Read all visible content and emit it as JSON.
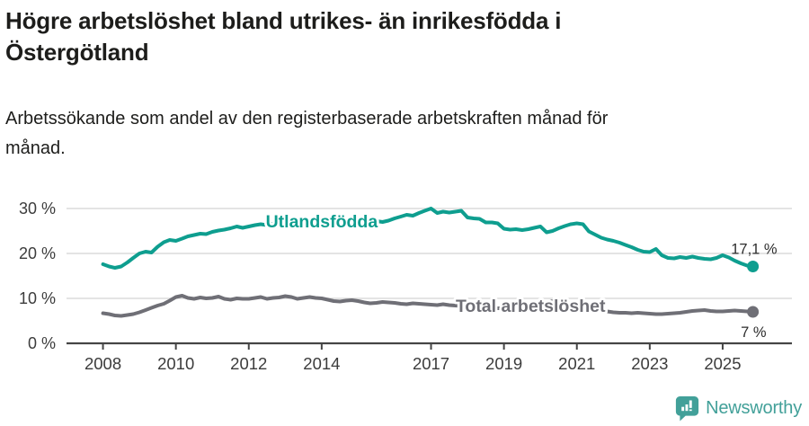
{
  "title_lines": [
    "Högre arbetslöshet bland utrikes- än inrikesfödda i",
    "Östergötland"
  ],
  "subtitle_lines": [
    "Arbetssökande som andel av den registerbaserade arbetskraften månad för",
    "månad."
  ],
  "branding": {
    "name": "Newsworthy",
    "color": "#42a099"
  },
  "chart_data": {
    "type": "line",
    "title": "Högre arbetslöshet bland utrikes- än inrikesfödda i Östergötland",
    "subtitle": "Arbetssökande som andel av den registerbaserade arbetskraften månad för månad.",
    "xlabel": "",
    "ylabel": "",
    "grid": true,
    "legend_position": "inline-labels",
    "x_axis": {
      "min": 2007.0,
      "max": 2026.9,
      "ticks": [
        2008,
        2010,
        2012,
        2014,
        2017,
        2019,
        2021,
        2023,
        2025
      ],
      "tick_labels": [
        "2008",
        "2010",
        "2012",
        "2014",
        "2017",
        "2019",
        "2021",
        "2023",
        "2025"
      ]
    },
    "y_axis": {
      "min": 0,
      "max": 32,
      "ticks": [
        0,
        10,
        20,
        30
      ],
      "tick_labels": [
        "0 %",
        "10 %",
        "20 %",
        "30 %"
      ]
    },
    "colors": {
      "grid": "#dcdcdc",
      "axis": "#454545",
      "axis_text": "#3c3c3c",
      "end_label": "#2d2d2d"
    },
    "series": [
      {
        "id": "utlandsfodda",
        "name": "Utlandsfödda",
        "color": "#0e9e8f",
        "end_label": "17,1 %",
        "end_value": 17.1,
        "end_label_offset": [
          27,
          -14
        ],
        "inline_label": {
          "x": 2014.0,
          "y": 25.8
        },
        "points": [
          [
            2008.0,
            17.6
          ],
          [
            2008.17,
            17.1
          ],
          [
            2008.33,
            16.8
          ],
          [
            2008.5,
            17.1
          ],
          [
            2008.67,
            18.0
          ],
          [
            2008.83,
            19.0
          ],
          [
            2009.0,
            20.0
          ],
          [
            2009.17,
            20.4
          ],
          [
            2009.33,
            20.2
          ],
          [
            2009.5,
            21.5
          ],
          [
            2009.67,
            22.5
          ],
          [
            2009.83,
            23.0
          ],
          [
            2010.0,
            22.8
          ],
          [
            2010.17,
            23.3
          ],
          [
            2010.33,
            23.8
          ],
          [
            2010.5,
            24.1
          ],
          [
            2010.67,
            24.4
          ],
          [
            2010.83,
            24.3
          ],
          [
            2011.0,
            24.8
          ],
          [
            2011.17,
            25.1
          ],
          [
            2011.33,
            25.3
          ],
          [
            2011.5,
            25.6
          ],
          [
            2011.67,
            26.0
          ],
          [
            2011.83,
            25.7
          ],
          [
            2012.0,
            26.0
          ],
          [
            2012.17,
            26.3
          ],
          [
            2012.33,
            26.5
          ],
          [
            2012.5,
            26.3
          ],
          [
            2012.67,
            26.6
          ],
          [
            2012.83,
            26.4
          ],
          [
            2013.0,
            26.5
          ],
          [
            2013.17,
            26.7
          ],
          [
            2013.33,
            26.5
          ],
          [
            2013.5,
            26.8
          ],
          [
            2013.67,
            27.0
          ],
          [
            2013.83,
            26.8
          ],
          [
            2014.0,
            26.9
          ],
          [
            2014.17,
            27.1
          ],
          [
            2014.33,
            26.9
          ],
          [
            2014.5,
            27.0
          ],
          [
            2014.67,
            27.2
          ],
          [
            2014.83,
            27.0
          ],
          [
            2015.0,
            27.1
          ],
          [
            2015.17,
            27.3
          ],
          [
            2015.33,
            27.1
          ],
          [
            2015.5,
            27.2
          ],
          [
            2015.67,
            27.0
          ],
          [
            2015.83,
            27.3
          ],
          [
            2016.0,
            27.8
          ],
          [
            2016.17,
            28.2
          ],
          [
            2016.33,
            28.6
          ],
          [
            2016.5,
            28.4
          ],
          [
            2016.67,
            29.0
          ],
          [
            2016.83,
            29.5
          ],
          [
            2017.0,
            30.0
          ],
          [
            2017.17,
            29.0
          ],
          [
            2017.33,
            29.3
          ],
          [
            2017.5,
            29.1
          ],
          [
            2017.67,
            29.3
          ],
          [
            2017.83,
            29.5
          ],
          [
            2018.0,
            28.0
          ],
          [
            2018.17,
            27.8
          ],
          [
            2018.33,
            27.7
          ],
          [
            2018.5,
            26.9
          ],
          [
            2018.67,
            26.9
          ],
          [
            2018.83,
            26.7
          ],
          [
            2019.0,
            25.5
          ],
          [
            2019.17,
            25.3
          ],
          [
            2019.33,
            25.4
          ],
          [
            2019.5,
            25.2
          ],
          [
            2019.67,
            25.4
          ],
          [
            2019.83,
            25.7
          ],
          [
            2020.0,
            26.0
          ],
          [
            2020.17,
            24.7
          ],
          [
            2020.33,
            25.0
          ],
          [
            2020.5,
            25.6
          ],
          [
            2020.67,
            26.1
          ],
          [
            2020.83,
            26.5
          ],
          [
            2021.0,
            26.7
          ],
          [
            2021.17,
            26.5
          ],
          [
            2021.33,
            24.9
          ],
          [
            2021.5,
            24.2
          ],
          [
            2021.67,
            23.5
          ],
          [
            2021.83,
            23.1
          ],
          [
            2022.0,
            22.8
          ],
          [
            2022.17,
            22.4
          ],
          [
            2022.33,
            21.9
          ],
          [
            2022.5,
            21.4
          ],
          [
            2022.67,
            20.8
          ],
          [
            2022.83,
            20.4
          ],
          [
            2023.0,
            20.3
          ],
          [
            2023.17,
            21.0
          ],
          [
            2023.33,
            19.6
          ],
          [
            2023.5,
            19.0
          ],
          [
            2023.67,
            18.9
          ],
          [
            2023.83,
            19.2
          ],
          [
            2024.0,
            19.0
          ],
          [
            2024.17,
            19.3
          ],
          [
            2024.33,
            19.0
          ],
          [
            2024.5,
            18.8
          ],
          [
            2024.67,
            18.7
          ],
          [
            2024.83,
            19.0
          ],
          [
            2025.0,
            19.6
          ],
          [
            2025.17,
            19.1
          ],
          [
            2025.33,
            18.4
          ],
          [
            2025.5,
            17.8
          ],
          [
            2025.67,
            17.3
          ],
          [
            2025.83,
            17.1
          ]
        ]
      },
      {
        "id": "total",
        "name": "Total arbetslöshet",
        "color": "#6f6f76",
        "end_label": "7 %",
        "end_value": 7,
        "end_label_offset": [
          15,
          28
        ],
        "inline_label": {
          "x": 2019.73,
          "y": 7.0
        },
        "points": [
          [
            2008.0,
            6.7
          ],
          [
            2008.17,
            6.5
          ],
          [
            2008.33,
            6.2
          ],
          [
            2008.5,
            6.1
          ],
          [
            2008.67,
            6.3
          ],
          [
            2008.83,
            6.5
          ],
          [
            2009.0,
            6.9
          ],
          [
            2009.17,
            7.4
          ],
          [
            2009.33,
            7.9
          ],
          [
            2009.5,
            8.4
          ],
          [
            2009.67,
            8.8
          ],
          [
            2009.83,
            9.5
          ],
          [
            2010.0,
            10.3
          ],
          [
            2010.17,
            10.6
          ],
          [
            2010.33,
            10.1
          ],
          [
            2010.5,
            9.9
          ],
          [
            2010.67,
            10.2
          ],
          [
            2010.83,
            10.0
          ],
          [
            2011.0,
            10.1
          ],
          [
            2011.17,
            10.4
          ],
          [
            2011.33,
            9.9
          ],
          [
            2011.5,
            9.7
          ],
          [
            2011.67,
            10.0
          ],
          [
            2011.83,
            9.9
          ],
          [
            2012.0,
            9.9
          ],
          [
            2012.17,
            10.1
          ],
          [
            2012.33,
            10.3
          ],
          [
            2012.5,
            9.9
          ],
          [
            2012.67,
            10.1
          ],
          [
            2012.83,
            10.2
          ],
          [
            2013.0,
            10.5
          ],
          [
            2013.17,
            10.3
          ],
          [
            2013.33,
            9.9
          ],
          [
            2013.5,
            10.1
          ],
          [
            2013.67,
            10.3
          ],
          [
            2013.83,
            10.1
          ],
          [
            2014.0,
            10.0
          ],
          [
            2014.17,
            9.7
          ],
          [
            2014.33,
            9.4
          ],
          [
            2014.5,
            9.3
          ],
          [
            2014.67,
            9.5
          ],
          [
            2014.83,
            9.6
          ],
          [
            2015.0,
            9.4
          ],
          [
            2015.17,
            9.1
          ],
          [
            2015.33,
            8.9
          ],
          [
            2015.5,
            9.0
          ],
          [
            2015.67,
            9.2
          ],
          [
            2015.83,
            9.1
          ],
          [
            2016.0,
            9.0
          ],
          [
            2016.17,
            8.8
          ],
          [
            2016.33,
            8.7
          ],
          [
            2016.5,
            8.9
          ],
          [
            2016.67,
            8.8
          ],
          [
            2016.83,
            8.7
          ],
          [
            2017.0,
            8.6
          ],
          [
            2017.17,
            8.5
          ],
          [
            2017.33,
            8.7
          ],
          [
            2017.5,
            8.5
          ],
          [
            2017.67,
            8.4
          ],
          [
            2017.83,
            8.3
          ],
          [
            2018.0,
            8.2
          ],
          [
            2018.17,
            8.1
          ],
          [
            2018.33,
            8.0
          ],
          [
            2018.5,
            7.9
          ],
          [
            2018.67,
            7.9
          ],
          [
            2018.83,
            7.8
          ],
          [
            2019.0,
            7.8
          ],
          [
            2019.17,
            7.8
          ],
          [
            2019.33,
            7.9
          ],
          [
            2019.5,
            7.9
          ],
          [
            2019.67,
            8.0
          ],
          [
            2019.83,
            8.1
          ],
          [
            2020.0,
            8.3
          ],
          [
            2020.17,
            8.9
          ],
          [
            2020.33,
            9.4
          ],
          [
            2020.5,
            9.2
          ],
          [
            2020.67,
            9.0
          ],
          [
            2020.83,
            8.8
          ],
          [
            2021.0,
            8.7
          ],
          [
            2021.17,
            8.4
          ],
          [
            2021.33,
            8.1
          ],
          [
            2021.5,
            7.7
          ],
          [
            2021.67,
            7.4
          ],
          [
            2021.83,
            7.1
          ],
          [
            2022.0,
            6.9
          ],
          [
            2022.17,
            6.8
          ],
          [
            2022.33,
            6.8
          ],
          [
            2022.5,
            6.7
          ],
          [
            2022.67,
            6.8
          ],
          [
            2022.83,
            6.7
          ],
          [
            2023.0,
            6.6
          ],
          [
            2023.17,
            6.5
          ],
          [
            2023.33,
            6.5
          ],
          [
            2023.5,
            6.6
          ],
          [
            2023.67,
            6.7
          ],
          [
            2023.83,
            6.8
          ],
          [
            2024.0,
            7.0
          ],
          [
            2024.17,
            7.2
          ],
          [
            2024.33,
            7.3
          ],
          [
            2024.5,
            7.4
          ],
          [
            2024.67,
            7.2
          ],
          [
            2024.83,
            7.1
          ],
          [
            2025.0,
            7.1
          ],
          [
            2025.17,
            7.2
          ],
          [
            2025.33,
            7.3
          ],
          [
            2025.5,
            7.2
          ],
          [
            2025.67,
            7.1
          ],
          [
            2025.83,
            7.0
          ]
        ]
      }
    ]
  }
}
